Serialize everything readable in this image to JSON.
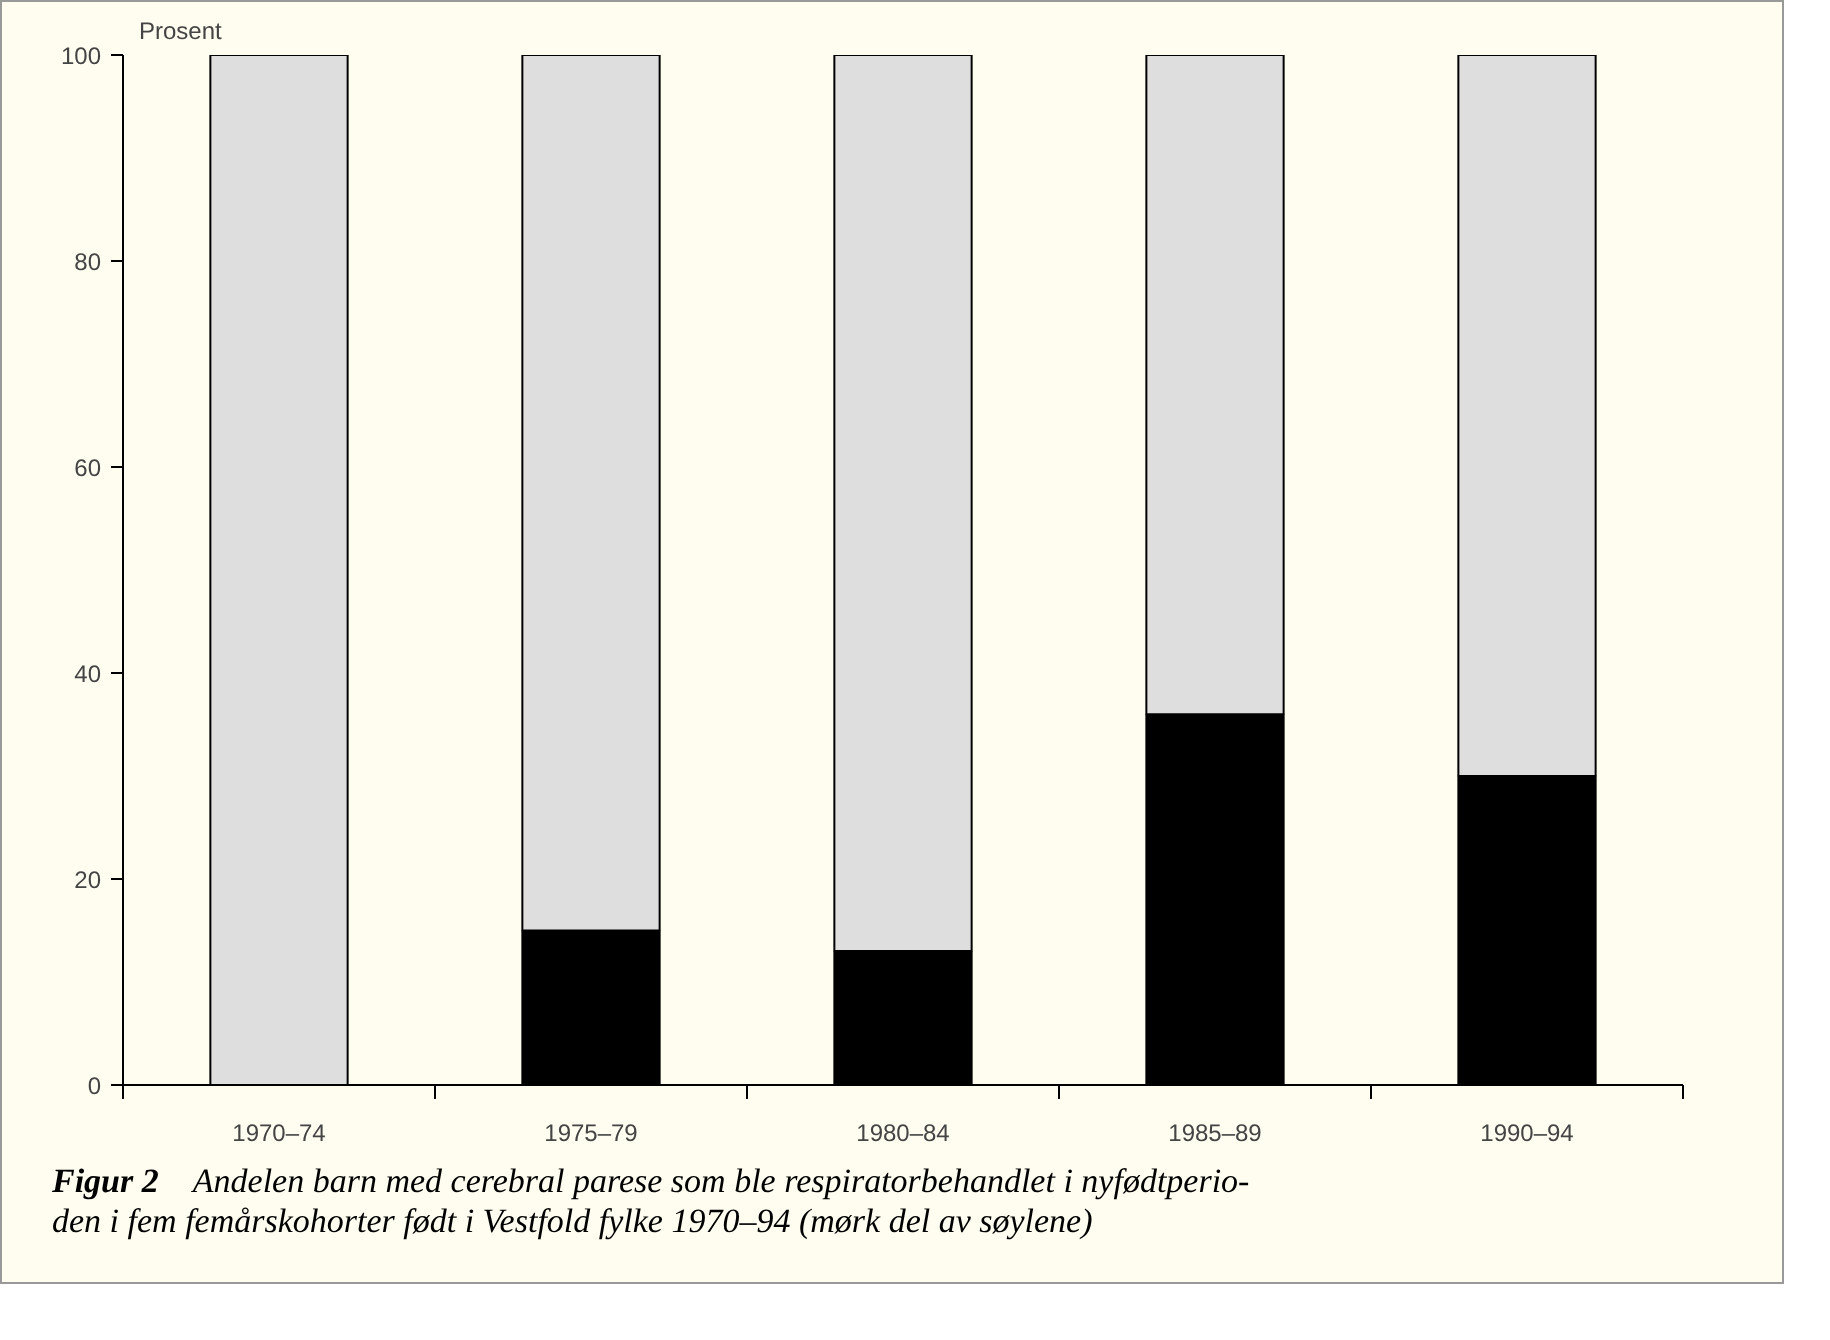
{
  "chart_data": {
    "type": "bar",
    "stacked": true,
    "ylabel": "Prosent",
    "categories": [
      "1970–74",
      "1975–79",
      "1980–84",
      "1985–89",
      "1990–94"
    ],
    "series": [
      {
        "color": "#000000",
        "values": [
          0,
          15,
          13,
          36,
          30
        ]
      },
      {
        "color": "#dedede",
        "values": [
          100,
          85,
          87,
          64,
          70
        ]
      }
    ],
    "ylim": [
      0,
      100
    ],
    "yticks": [
      0,
      20,
      40,
      60,
      80,
      100
    ],
    "grid": false,
    "annotations": [
      "Figur  2",
      "Andelen barn med cerebral parese som ble respiratorbehandlet i nyfødtperio-",
      "den i fem femårskohorter født i Vestfold fylke 1970–94 (mørk del av søylene)"
    ]
  }
}
